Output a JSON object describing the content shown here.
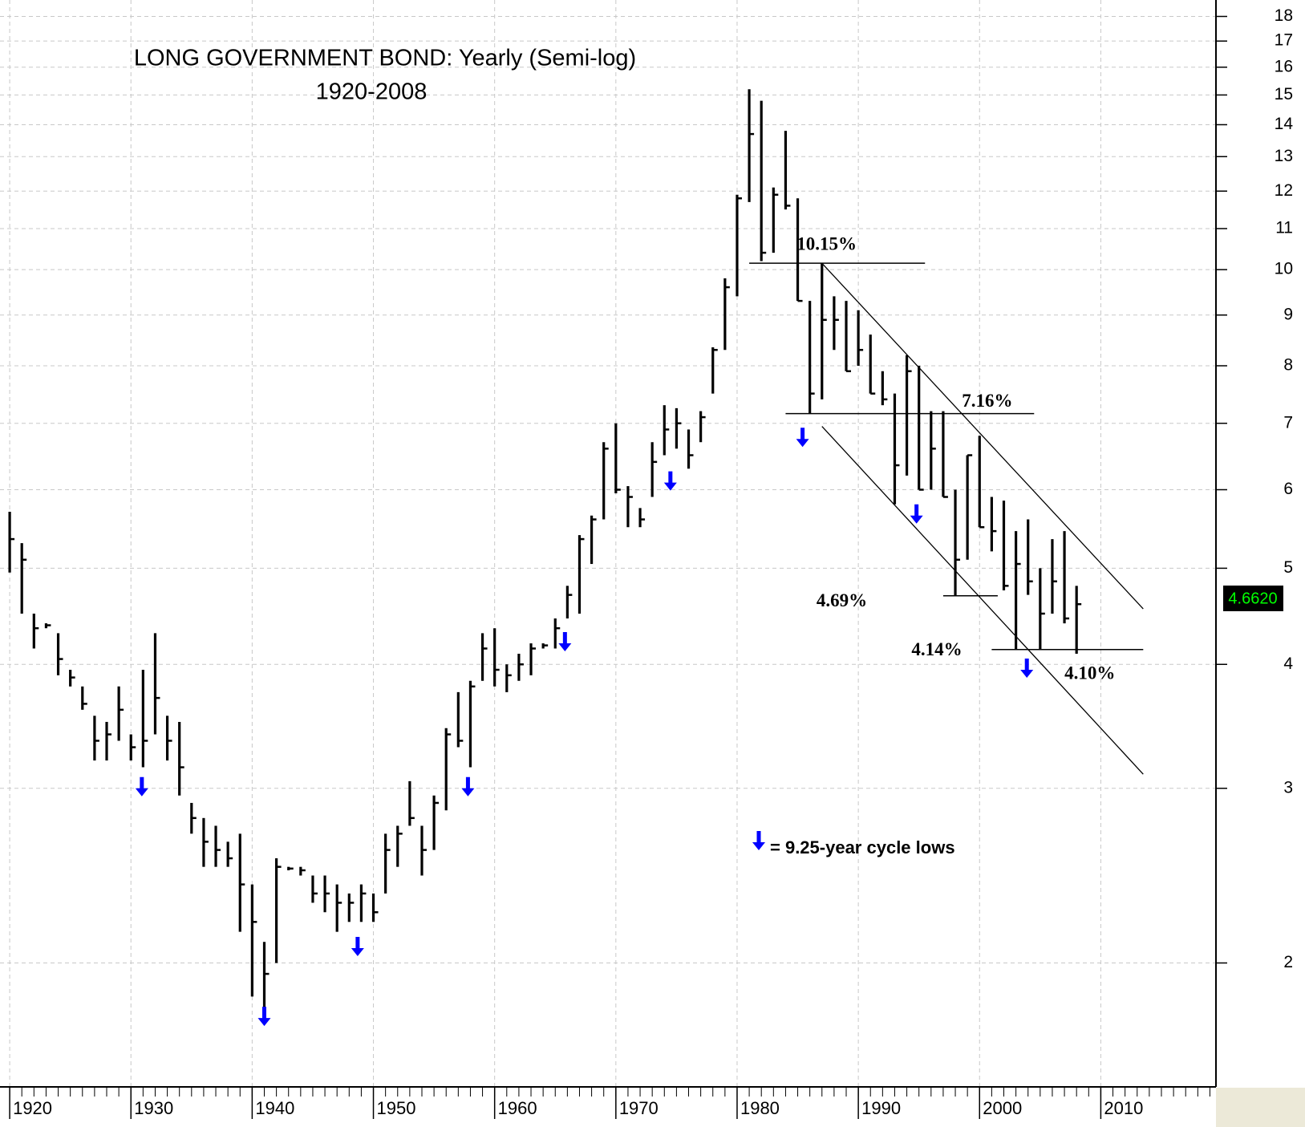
{
  "chart_data": {
    "type": "hlc",
    "title": "LONG GOVERNMENT BOND:  Yearly (Semi-log)",
    "subtitle": "1920-2008",
    "log_scale": true,
    "grid": true,
    "color": "#000000",
    "x": [
      1920,
      1921,
      1922,
      1923,
      1924,
      1925,
      1926,
      1927,
      1928,
      1929,
      1930,
      1931,
      1932,
      1933,
      1934,
      1935,
      1936,
      1937,
      1938,
      1939,
      1940,
      1941,
      1942,
      1943,
      1944,
      1945,
      1946,
      1947,
      1948,
      1949,
      1950,
      1951,
      1952,
      1953,
      1954,
      1955,
      1956,
      1957,
      1958,
      1959,
      1960,
      1961,
      1962,
      1963,
      1964,
      1965,
      1966,
      1967,
      1968,
      1969,
      1970,
      1971,
      1972,
      1973,
      1974,
      1975,
      1976,
      1977,
      1978,
      1979,
      1980,
      1981,
      1982,
      1983,
      1984,
      1985,
      1986,
      1987,
      1988,
      1989,
      1990,
      1991,
      1992,
      1993,
      1994,
      1995,
      1996,
      1997,
      1998,
      1999,
      2000,
      2001,
      2002,
      2003,
      2004,
      2005,
      2006,
      2007,
      2008
    ],
    "high": [
      5.7,
      5.3,
      4.5,
      4.4,
      4.3,
      3.95,
      3.8,
      3.55,
      3.5,
      3.8,
      3.4,
      3.95,
      4.3,
      3.55,
      3.5,
      2.9,
      2.8,
      2.75,
      2.65,
      2.7,
      2.4,
      2.1,
      2.55,
      2.5,
      2.5,
      2.45,
      2.45,
      2.4,
      2.35,
      2.4,
      2.35,
      2.7,
      2.75,
      3.05,
      2.75,
      2.95,
      3.45,
      3.75,
      3.85,
      4.3,
      4.35,
      4.0,
      4.1,
      4.2,
      4.2,
      4.45,
      4.8,
      5.4,
      5.65,
      6.7,
      7.0,
      6.05,
      5.75,
      6.7,
      7.3,
      7.25,
      6.9,
      7.2,
      8.35,
      9.8,
      11.9,
      15.2,
      14.8,
      12.1,
      13.8,
      11.8,
      9.3,
      10.15,
      9.4,
      9.3,
      9.1,
      8.6,
      7.9,
      7.5,
      8.2,
      8.0,
      7.2,
      7.2,
      6.0,
      6.5,
      6.8,
      5.9,
      5.85,
      5.45,
      5.6,
      5.0,
      5.35,
      5.45,
      4.8
    ],
    "low": [
      4.95,
      4.5,
      4.15,
      4.35,
      3.9,
      3.8,
      3.6,
      3.2,
      3.2,
      3.35,
      3.2,
      3.15,
      3.4,
      3.2,
      2.95,
      2.7,
      2.5,
      2.5,
      2.5,
      2.15,
      1.85,
      1.8,
      2.0,
      2.48,
      2.45,
      2.3,
      2.25,
      2.15,
      2.2,
      2.2,
      2.2,
      2.35,
      2.5,
      2.75,
      2.45,
      2.6,
      2.85,
      3.3,
      3.15,
      3.85,
      3.8,
      3.75,
      3.85,
      3.9,
      4.15,
      4.15,
      4.45,
      4.5,
      5.05,
      5.6,
      5.95,
      5.5,
      5.5,
      5.9,
      6.5,
      6.6,
      6.3,
      6.7,
      7.5,
      8.3,
      9.4,
      11.7,
      10.2,
      10.4,
      11.5,
      9.3,
      7.16,
      7.4,
      8.3,
      7.9,
      8.0,
      7.5,
      7.3,
      5.8,
      6.2,
      6.0,
      6.0,
      5.9,
      4.69,
      5.1,
      5.5,
      5.2,
      4.75,
      4.14,
      4.7,
      4.14,
      4.5,
      4.4,
      4.1
    ],
    "close": [
      5.35,
      5.1,
      4.35,
      4.38,
      4.05,
      3.88,
      3.65,
      3.35,
      3.4,
      3.6,
      3.3,
      3.35,
      3.7,
      3.35,
      3.15,
      2.8,
      2.65,
      2.6,
      2.55,
      2.4,
      2.2,
      1.95,
      2.5,
      2.49,
      2.48,
      2.35,
      2.35,
      2.3,
      2.3,
      2.35,
      2.25,
      2.6,
      2.7,
      2.8,
      2.6,
      2.9,
      3.4,
      3.35,
      3.8,
      4.15,
      3.95,
      3.9,
      4.0,
      4.15,
      4.18,
      4.35,
      4.7,
      5.35,
      5.6,
      6.6,
      6.0,
      5.9,
      5.6,
      6.4,
      6.9,
      7.0,
      6.5,
      7.1,
      8.3,
      9.6,
      11.8,
      13.7,
      10.4,
      11.9,
      11.6,
      9.3,
      7.5,
      8.9,
      8.9,
      7.9,
      8.3,
      7.5,
      7.4,
      6.35,
      7.9,
      6.0,
      6.6,
      5.9,
      5.1,
      6.5,
      5.5,
      5.45,
      4.8,
      5.05,
      4.85,
      4.5,
      4.85,
      4.45,
      4.6
    ],
    "xlim": [
      1919.2,
      2019.5
    ],
    "xticks": [
      1920,
      1930,
      1940,
      1950,
      1960,
      1970,
      1980,
      1990,
      2000,
      2010
    ],
    "ylim": [
      1.5,
      18.7
    ],
    "yticks": [
      2,
      3,
      4,
      5,
      6,
      7,
      8,
      9,
      10,
      11,
      12,
      13,
      14,
      15,
      16,
      17,
      18
    ],
    "last_value": {
      "value": 4.662,
      "label": "4.6620"
    },
    "levels": [
      {
        "value": 10.15,
        "label": "10.15%",
        "x": [
          1981,
          1995.5
        ]
      },
      {
        "value": 7.16,
        "label": "7.16%",
        "x": [
          1984,
          2004.5
        ]
      },
      {
        "value": 4.69,
        "label": "4.69%",
        "x": [
          1997,
          2001.5
        ]
      },
      {
        "value": 4.14,
        "label": "4.14%",
        "x": [
          2001,
          2013.5
        ]
      }
    ],
    "point_labels": [
      {
        "x": 2008,
        "value": 4.1,
        "label": "4.10%"
      }
    ],
    "channel": [
      {
        "x": [
          1987,
          2013.5
        ],
        "values": [
          10.15,
          4.55
        ]
      },
      {
        "x": [
          1987,
          2013.5
        ],
        "values": [
          6.95,
          3.1
        ]
      }
    ],
    "cycle_lows": {
      "name": "= 9.25-year cycle lows",
      "color": "#0000ff",
      "x": [
        1930.9,
        1941,
        1948.7,
        1957.8,
        1965.8,
        1974.5,
        1985.4,
        1994.8,
        2003.9
      ],
      "values": [
        3.0,
        1.76,
        2.07,
        3.0,
        4.2,
        6.1,
        6.75,
        5.65,
        3.95
      ]
    }
  }
}
